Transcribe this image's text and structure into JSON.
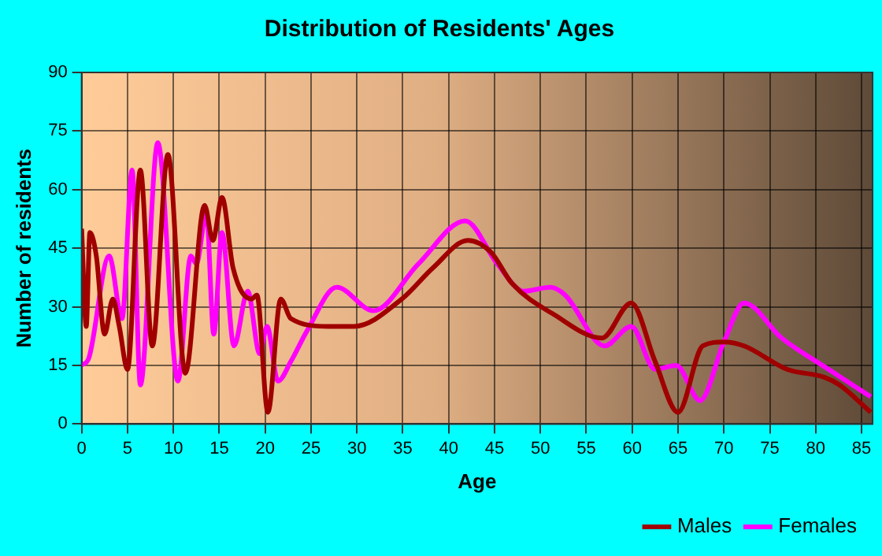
{
  "chart_data": {
    "type": "line",
    "title": "Distribution of Residents' Ages",
    "xlabel": "Age",
    "ylabel": "Number of residents",
    "xlim": [
      0,
      86.2
    ],
    "xticks": [
      0,
      5,
      10,
      15,
      20,
      25,
      30,
      35,
      40,
      45,
      50,
      55,
      60,
      65,
      70,
      75,
      80,
      85
    ],
    "ylim": [
      0,
      90
    ],
    "yticks": [
      0,
      15,
      30,
      45,
      60,
      75,
      90
    ],
    "grid": true,
    "legend": "bottom right",
    "marker": "none",
    "series": [
      {
        "name": "Males",
        "color": "#a00000",
        "x": [
          0,
          0.5,
          0.9,
          1.6,
          2.5,
          3.4,
          4.1,
          5,
          6.4,
          7.7,
          9.4,
          11.3,
          13.4,
          14.3,
          15.3,
          16.5,
          18.5,
          19.1,
          20.3,
          21.7,
          22.8,
          26.9,
          29.7,
          34.9,
          38.3,
          42.1,
          44.6,
          46.9,
          51.5,
          56.7,
          59.9,
          62.5,
          65,
          67.7,
          70,
          72.2,
          76.9,
          80.9,
          82.6,
          86
        ],
        "values": [
          50,
          25,
          49,
          43,
          23,
          32,
          25,
          14,
          65,
          20,
          69,
          13,
          56,
          47,
          58,
          40,
          32,
          33,
          3,
          32,
          27,
          25,
          25,
          32,
          40,
          47,
          44,
          36,
          28,
          22,
          31,
          16,
          3,
          20,
          21,
          20,
          14,
          12,
          10,
          3
        ]
      },
      {
        "name": "Females",
        "color": "#ff00ff",
        "x": [
          0,
          0.8,
          3,
          4.4,
          5.5,
          6.4,
          8.3,
          10.5,
          11.9,
          12.5,
          13.6,
          14.4,
          15.3,
          16.6,
          18.1,
          19.4,
          20.2,
          21.4,
          22.8,
          24.6,
          27.8,
          31.8,
          36.7,
          41.8,
          45.3,
          48.2,
          51.1,
          52.7,
          57,
          59.9,
          62.5,
          64.8,
          67.4,
          70,
          72.2,
          76.3,
          81.4,
          86
        ],
        "values": [
          15,
          17,
          43,
          27,
          65,
          10,
          72,
          11,
          43,
          41,
          54,
          23,
          49,
          20,
          34,
          18,
          25,
          11,
          16,
          24,
          35,
          29,
          41,
          52,
          41,
          34,
          35,
          33,
          20,
          25,
          14,
          15,
          6,
          21,
          31,
          22,
          14,
          7
        ]
      }
    ]
  }
}
